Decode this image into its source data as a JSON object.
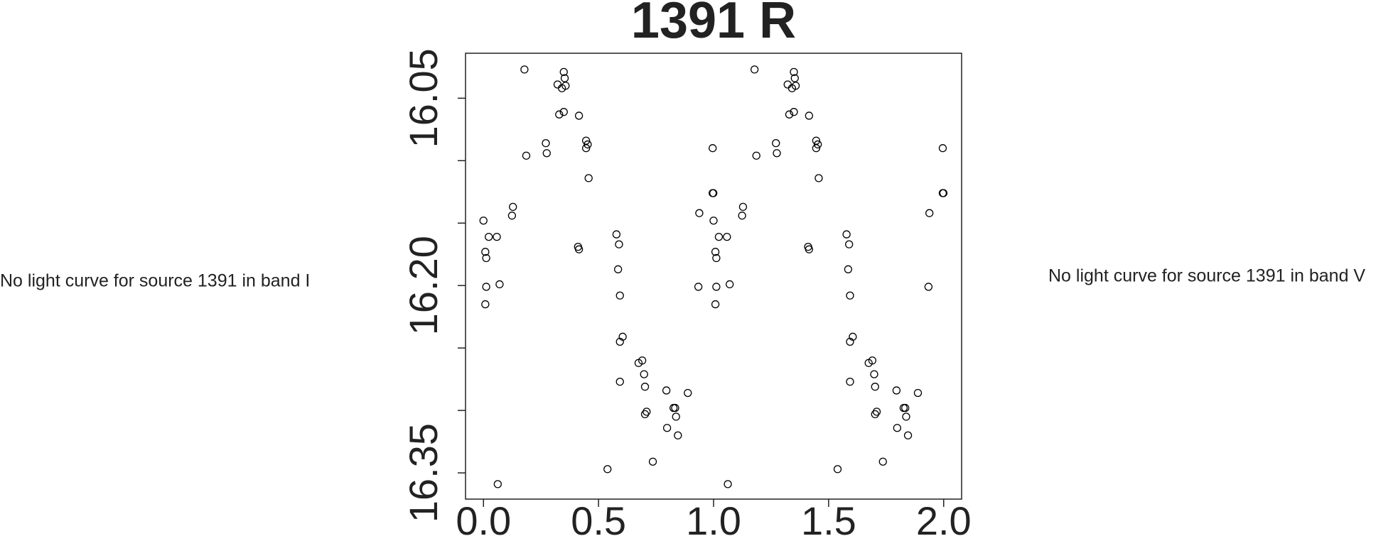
{
  "chart_data": {
    "type": "scatter",
    "title": "1391 R",
    "xlim": [
      -0.078,
      2.078
    ],
    "xticks": [
      {
        "value": 0,
        "label": "0.0"
      },
      {
        "value": 0.5,
        "label": "0.5"
      },
      {
        "value": 1,
        "label": "1.0"
      },
      {
        "value": 1.5,
        "label": "1.5"
      },
      {
        "value": 2,
        "label": "2.0"
      }
    ],
    "ylim": [
      16.371,
      16.014
    ],
    "yticks": [
      {
        "value": 16.05,
        "label": "16.05"
      },
      {
        "value": 16.2,
        "label": "16.20"
      },
      {
        "value": 16.35,
        "label": "16.35"
      }
    ],
    "yminor_ticks": [
      16.1,
      16.15,
      16.25,
      16.3
    ],
    "color": "#000000",
    "x": [
      0.0,
      0.008,
      0.012,
      0.023,
      0.058,
      0.012,
      0.008,
      0.07,
      0.062,
      0.128,
      0.124,
      0.178,
      0.186,
      0.271,
      0.275,
      0.322,
      0.329,
      0.349,
      0.353,
      0.341,
      0.357,
      0.349,
      0.415,
      0.411,
      0.415,
      0.446,
      0.453,
      0.446,
      0.457,
      0.539,
      0.578,
      0.589,
      0.585,
      0.593,
      0.605,
      0.593,
      0.593,
      0.674,
      0.69,
      0.698,
      0.702,
      0.702,
      0.709,
      0.736,
      0.795,
      0.798,
      0.826,
      0.833,
      0.837,
      0.845,
      0.888,
      0.938,
      0.934,
      0.996,
      0.996,
      0.999,
      1.0,
      1.008,
      1.012,
      1.023,
      1.058,
      1.012,
      1.008,
      1.07,
      1.062,
      1.128,
      1.124,
      1.178,
      1.186,
      1.271,
      1.275,
      1.322,
      1.329,
      1.349,
      1.353,
      1.341,
      1.357,
      1.349,
      1.415,
      1.411,
      1.415,
      1.446,
      1.453,
      1.446,
      1.457,
      1.539,
      1.578,
      1.589,
      1.585,
      1.593,
      1.605,
      1.593,
      1.593,
      1.674,
      1.69,
      1.698,
      1.702,
      1.702,
      1.709,
      1.736,
      1.795,
      1.798,
      1.826,
      1.833,
      1.837,
      1.845,
      1.888,
      1.938,
      1.934,
      1.996,
      1.996,
      1.999
    ],
    "values": [
      16.148,
      16.173,
      16.178,
      16.161,
      16.161,
      16.201,
      16.215,
      16.199,
      16.359,
      16.137,
      16.144,
      16.027,
      16.096,
      16.086,
      16.094,
      16.039,
      16.063,
      16.029,
      16.034,
      16.042,
      16.04,
      16.061,
      16.064,
      16.169,
      16.171,
      16.084,
      16.087,
      16.09,
      16.114,
      16.347,
      16.159,
      16.167,
      16.187,
      16.208,
      16.241,
      16.245,
      16.277,
      16.262,
      16.26,
      16.271,
      16.281,
      16.303,
      16.301,
      16.341,
      16.284,
      16.314,
      16.298,
      16.298,
      16.305,
      16.32,
      16.286,
      16.142,
      16.201,
      16.09,
      16.126,
      16.126,
      16.148,
      16.173,
      16.178,
      16.161,
      16.161,
      16.201,
      16.215,
      16.199,
      16.359,
      16.137,
      16.144,
      16.027,
      16.096,
      16.086,
      16.094,
      16.039,
      16.063,
      16.029,
      16.034,
      16.042,
      16.04,
      16.061,
      16.064,
      16.169,
      16.171,
      16.084,
      16.087,
      16.09,
      16.114,
      16.347,
      16.159,
      16.167,
      16.187,
      16.208,
      16.241,
      16.245,
      16.277,
      16.262,
      16.26,
      16.271,
      16.281,
      16.303,
      16.301,
      16.341,
      16.284,
      16.314,
      16.298,
      16.298,
      16.305,
      16.32,
      16.286,
      16.142,
      16.201,
      16.09,
      16.126,
      16.126
    ]
  },
  "side_texts": [
    "No light curve for source 1391 in band I",
    "No light curve for source 1391 in band V"
  ]
}
